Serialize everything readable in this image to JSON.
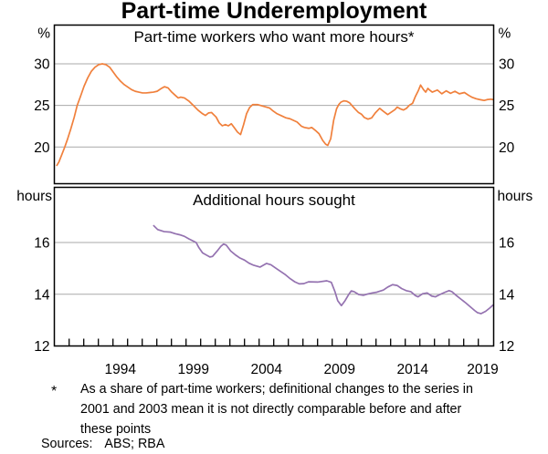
{
  "title": "Part-time Underemployment",
  "footnote": {
    "marker": "*",
    "lines": [
      "As a share of part-time workers; definitional changes to the series in",
      "2001 and 2003 mean it is not directly comparable before and after",
      "these points"
    ]
  },
  "sources": {
    "label": "Sources:",
    "value": "ABS; RBA"
  },
  "colors": {
    "top_series": "#f0803c",
    "bottom_series": "#9472b0",
    "gridline": "#a9a9a9",
    "axis": "#000000"
  },
  "x_axis": {
    "labels": [
      {
        "text": "1994",
        "year": 1994.5
      },
      {
        "text": "1999",
        "year": 1999.5
      },
      {
        "text": "2004",
        "year": 2004.5
      },
      {
        "text": "2009",
        "year": 2009.5
      },
      {
        "text": "2014",
        "year": 2014.5
      },
      {
        "text": "2019",
        "year": 2019.3
      }
    ],
    "tick_years_from": 1991,
    "tick_years_to": 2019
  },
  "chart_data": [
    {
      "type": "line",
      "panel": "top",
      "title": "Part-time workers who want more hours*",
      "unit_left": "%",
      "unit_right": "%",
      "yticks": [
        20,
        25,
        30
      ],
      "gridlines": [
        20,
        25,
        30
      ],
      "ylim": [
        15.6,
        34.65
      ],
      "xlim": [
        1989.99,
        2020.05
      ],
      "series": [
        {
          "name": "Part-time workers who want more hours (% of part-time workers)",
          "color": "#f0803c",
          "points": [
            [
              1990.16,
              17.8
            ],
            [
              1990.3,
              18.2
            ],
            [
              1990.5,
              19.1
            ],
            [
              1990.7,
              20.0
            ],
            [
              1990.9,
              21.0
            ],
            [
              1991.1,
              22.1
            ],
            [
              1991.35,
              23.6
            ],
            [
              1991.55,
              25.0
            ],
            [
              1991.78,
              26.1
            ],
            [
              1992.02,
              27.3
            ],
            [
              1992.27,
              28.3
            ],
            [
              1992.52,
              29.1
            ],
            [
              1992.77,
              29.6
            ],
            [
              1993.02,
              29.9
            ],
            [
              1993.27,
              30.0
            ],
            [
              1993.52,
              29.9
            ],
            [
              1993.77,
              29.6
            ],
            [
              1994.02,
              29.0
            ],
            [
              1994.27,
              28.4
            ],
            [
              1994.52,
              27.9
            ],
            [
              1994.77,
              27.5
            ],
            [
              1995.02,
              27.2
            ],
            [
              1995.27,
              26.9
            ],
            [
              1995.52,
              26.7
            ],
            [
              1995.77,
              26.6
            ],
            [
              1996.02,
              26.5
            ],
            [
              1996.27,
              26.5
            ],
            [
              1996.52,
              26.55
            ],
            [
              1996.77,
              26.6
            ],
            [
              1997.02,
              26.7
            ],
            [
              1997.27,
              27.0
            ],
            [
              1997.52,
              27.25
            ],
            [
              1997.77,
              27.1
            ],
            [
              1998.02,
              26.6
            ],
            [
              1998.27,
              26.2
            ],
            [
              1998.46,
              25.9
            ],
            [
              1998.64,
              26.0
            ],
            [
              1998.89,
              25.9
            ],
            [
              1999.21,
              25.5
            ],
            [
              1999.5,
              25.0
            ],
            [
              1999.81,
              24.45
            ],
            [
              2000.13,
              24.0
            ],
            [
              2000.33,
              23.8
            ],
            [
              2000.54,
              24.1
            ],
            [
              2000.74,
              24.15
            ],
            [
              2001.06,
              23.6
            ],
            [
              2001.27,
              22.9
            ],
            [
              2001.48,
              22.55
            ],
            [
              2001.69,
              22.7
            ],
            [
              2001.89,
              22.55
            ],
            [
              2002.1,
              22.8
            ],
            [
              2002.31,
              22.3
            ],
            [
              2002.52,
              21.8
            ],
            [
              2002.73,
              21.5
            ],
            [
              2002.94,
              22.7
            ],
            [
              2003.14,
              24.0
            ],
            [
              2003.35,
              24.75
            ],
            [
              2003.56,
              25.1
            ],
            [
              2003.89,
              25.1
            ],
            [
              2004.29,
              24.9
            ],
            [
              2004.71,
              24.7
            ],
            [
              2004.91,
              24.4
            ],
            [
              2005.23,
              24.0
            ],
            [
              2005.54,
              23.75
            ],
            [
              2005.85,
              23.5
            ],
            [
              2006.11,
              23.4
            ],
            [
              2006.6,
              23.0
            ],
            [
              2006.9,
              22.5
            ],
            [
              2007.1,
              22.35
            ],
            [
              2007.4,
              22.25
            ],
            [
              2007.6,
              22.35
            ],
            [
              2007.85,
              22.0
            ],
            [
              2008.1,
              21.6
            ],
            [
              2008.35,
              20.8
            ],
            [
              2008.55,
              20.35
            ],
            [
              2008.7,
              20.2
            ],
            [
              2008.9,
              21.0
            ],
            [
              2009.1,
              23.2
            ],
            [
              2009.3,
              24.6
            ],
            [
              2009.45,
              25.1
            ],
            [
              2009.6,
              25.4
            ],
            [
              2009.8,
              25.55
            ],
            [
              2010.0,
              25.5
            ],
            [
              2010.2,
              25.3
            ],
            [
              2010.55,
              24.6
            ],
            [
              2010.8,
              24.15
            ],
            [
              2011.0,
              23.95
            ],
            [
              2011.2,
              23.55
            ],
            [
              2011.45,
              23.35
            ],
            [
              2011.7,
              23.5
            ],
            [
              2011.95,
              24.1
            ],
            [
              2012.25,
              24.65
            ],
            [
              2012.5,
              24.3
            ],
            [
              2012.8,
              23.9
            ],
            [
              2013.05,
              24.2
            ],
            [
              2013.3,
              24.5
            ],
            [
              2013.45,
              24.8
            ],
            [
              2013.65,
              24.6
            ],
            [
              2013.88,
              24.45
            ],
            [
              2014.08,
              24.65
            ],
            [
              2014.3,
              25.05
            ],
            [
              2014.5,
              25.25
            ],
            [
              2014.7,
              26.1
            ],
            [
              2014.9,
              26.8
            ],
            [
              2015.05,
              27.45
            ],
            [
              2015.25,
              26.9
            ],
            [
              2015.4,
              26.6
            ],
            [
              2015.55,
              27.05
            ],
            [
              2015.7,
              26.8
            ],
            [
              2015.85,
              26.6
            ],
            [
              2016.2,
              26.85
            ],
            [
              2016.5,
              26.4
            ],
            [
              2016.8,
              26.75
            ],
            [
              2017.1,
              26.45
            ],
            [
              2017.4,
              26.7
            ],
            [
              2017.7,
              26.4
            ],
            [
              2018.05,
              26.55
            ],
            [
              2018.35,
              26.2
            ],
            [
              2018.55,
              26.0
            ],
            [
              2018.85,
              25.8
            ],
            [
              2019.1,
              25.7
            ],
            [
              2019.4,
              25.6
            ],
            [
              2019.6,
              25.7
            ],
            [
              2019.85,
              25.75
            ],
            [
              2020.02,
              25.7
            ]
          ]
        }
      ]
    },
    {
      "type": "line",
      "panel": "bottom",
      "title": "Additional hours sought",
      "unit_left": "hours",
      "unit_right": "hours",
      "yticks": [
        12,
        14,
        16
      ],
      "gridlines": [
        14,
        16
      ],
      "ylim": [
        12,
        18.12
      ],
      "xlim": [
        1989.99,
        2020.05
      ],
      "series": [
        {
          "name": "Additional hours sought by underemployed part-time workers",
          "color": "#9472b0",
          "points": [
            [
              1996.79,
              16.65
            ],
            [
              1997.06,
              16.5
            ],
            [
              1997.5,
              16.42
            ],
            [
              1997.94,
              16.4
            ],
            [
              1998.25,
              16.34
            ],
            [
              1998.56,
              16.3
            ],
            [
              1998.88,
              16.24
            ],
            [
              1999.19,
              16.14
            ],
            [
              1999.69,
              16.0
            ],
            [
              1999.88,
              15.8
            ],
            [
              2000.13,
              15.6
            ],
            [
              2000.44,
              15.5
            ],
            [
              2000.63,
              15.44
            ],
            [
              2000.81,
              15.46
            ],
            [
              2001.13,
              15.67
            ],
            [
              2001.38,
              15.85
            ],
            [
              2001.56,
              15.94
            ],
            [
              2001.75,
              15.9
            ],
            [
              2002.06,
              15.67
            ],
            [
              2002.38,
              15.52
            ],
            [
              2002.69,
              15.4
            ],
            [
              2003.0,
              15.32
            ],
            [
              2003.31,
              15.2
            ],
            [
              2003.63,
              15.12
            ],
            [
              2004.06,
              15.05
            ],
            [
              2004.5,
              15.19
            ],
            [
              2004.81,
              15.14
            ],
            [
              2005.19,
              14.99
            ],
            [
              2005.5,
              14.87
            ],
            [
              2005.81,
              14.75
            ],
            [
              2006.13,
              14.6
            ],
            [
              2006.44,
              14.48
            ],
            [
              2006.75,
              14.4
            ],
            [
              2007.06,
              14.41
            ],
            [
              2007.38,
              14.48
            ],
            [
              2008.0,
              14.47
            ],
            [
              2008.63,
              14.52
            ],
            [
              2008.94,
              14.46
            ],
            [
              2009.19,
              14.1
            ],
            [
              2009.38,
              13.75
            ],
            [
              2009.63,
              13.56
            ],
            [
              2009.88,
              13.75
            ],
            [
              2010.13,
              13.99
            ],
            [
              2010.31,
              14.13
            ],
            [
              2010.5,
              14.1
            ],
            [
              2010.81,
              13.99
            ],
            [
              2011.13,
              13.96
            ],
            [
              2011.44,
              14.01
            ],
            [
              2011.75,
              14.05
            ],
            [
              2012.06,
              14.08
            ],
            [
              2012.5,
              14.16
            ],
            [
              2012.81,
              14.28
            ],
            [
              2013.13,
              14.37
            ],
            [
              2013.44,
              14.34
            ],
            [
              2013.75,
              14.22
            ],
            [
              2014.06,
              14.14
            ],
            [
              2014.38,
              14.1
            ],
            [
              2014.69,
              13.95
            ],
            [
              2014.88,
              13.9
            ],
            [
              2015.19,
              14.02
            ],
            [
              2015.5,
              14.05
            ],
            [
              2015.81,
              13.93
            ],
            [
              2016.06,
              13.9
            ],
            [
              2016.38,
              13.99
            ],
            [
              2016.69,
              14.07
            ],
            [
              2017.0,
              14.14
            ],
            [
              2017.19,
              14.1
            ],
            [
              2017.5,
              13.95
            ],
            [
              2017.81,
              13.81
            ],
            [
              2018.13,
              13.67
            ],
            [
              2018.44,
              13.52
            ],
            [
              2018.75,
              13.37
            ],
            [
              2018.94,
              13.29
            ],
            [
              2019.19,
              13.25
            ],
            [
              2019.5,
              13.34
            ],
            [
              2019.81,
              13.48
            ],
            [
              2020.0,
              13.58
            ]
          ]
        }
      ]
    }
  ]
}
